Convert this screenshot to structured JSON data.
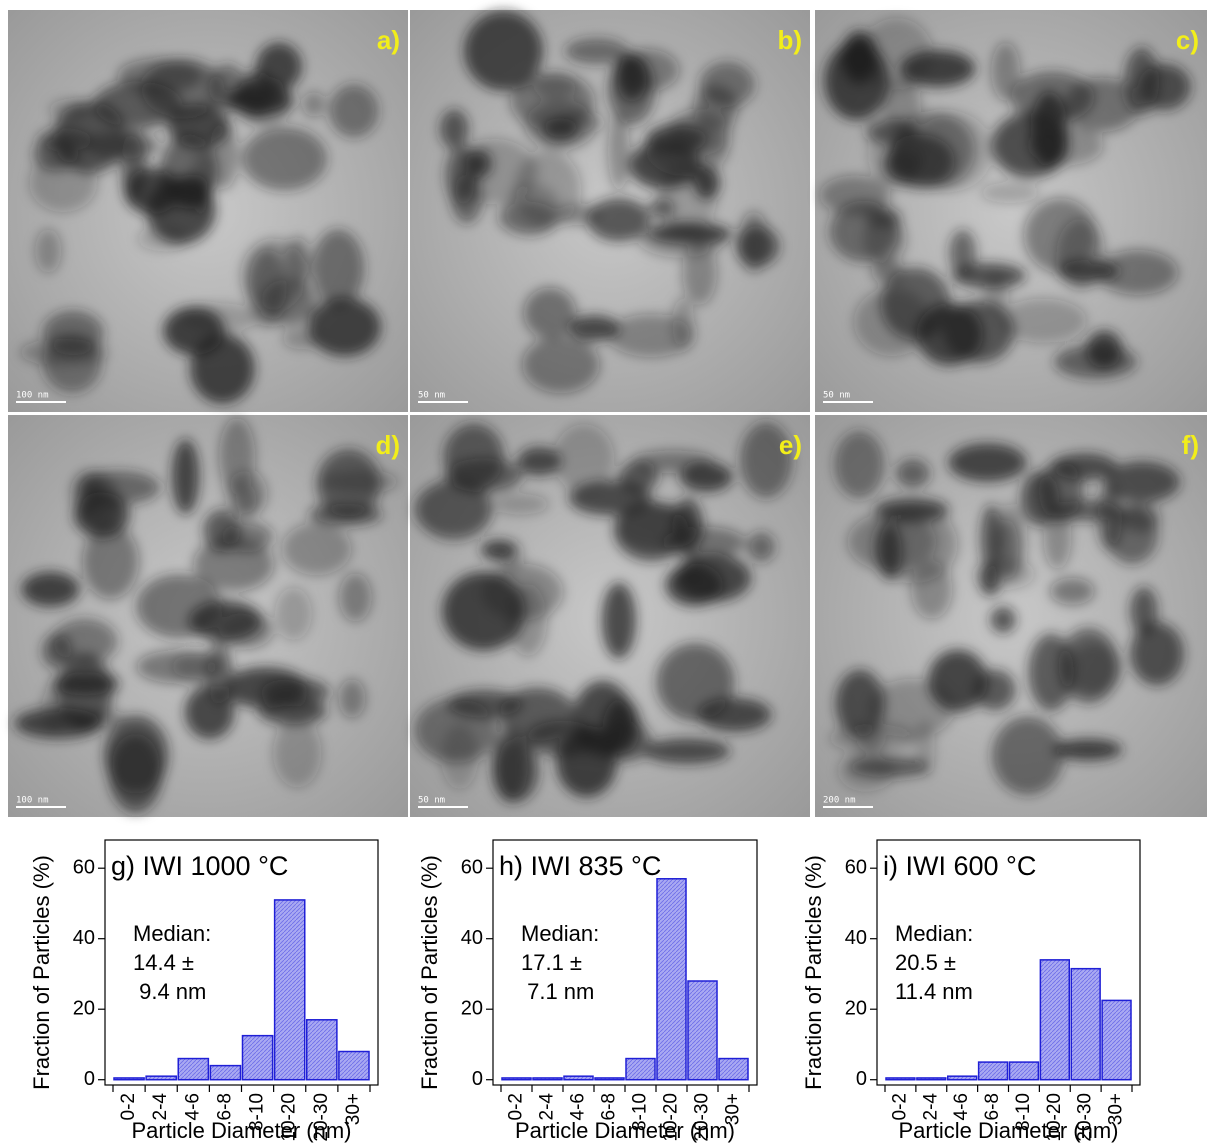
{
  "panels": [
    {
      "label": "a)",
      "scale": "100 nm"
    },
    {
      "label": "b)",
      "scale": "50 nm"
    },
    {
      "label": "c)",
      "scale": "50 nm"
    },
    {
      "label": "d)",
      "scale": "100 nm"
    },
    {
      "label": "e)",
      "scale": "50 nm"
    },
    {
      "label": "f)",
      "scale": "200 nm"
    }
  ],
  "chart_data": [
    {
      "type": "bar",
      "title": "g) IWI 1000 °C",
      "annotation": [
        "Median:",
        "14.4 ±",
        " 9.4 nm"
      ],
      "x_label": "Particle Diameter (nm)",
      "y_label": "Fraction of Particles (%)",
      "categories": [
        "0-2",
        "2-4",
        "4-6",
        "6-8",
        "8-10",
        "10-20",
        "20-30",
        "30+"
      ],
      "values": [
        0.5,
        1,
        6,
        4,
        12.5,
        51,
        17,
        8
      ],
      "color": "#a9a9f2",
      "edge_color": "#1f1fd6",
      "ylim": [
        -1.5,
        68
      ],
      "yticks": [
        0,
        20,
        40,
        60
      ]
    },
    {
      "type": "bar",
      "title": "h) IWI 835 °C",
      "annotation": [
        "Median:",
        "17.1 ±",
        " 7.1 nm"
      ],
      "x_label": "Particle Diameter (nm)",
      "y_label": "Fraction of Particles (%)",
      "categories": [
        "0-2",
        "2-4",
        "4-6",
        "6-8",
        "8-10",
        "10-20",
        "20-30",
        "30+"
      ],
      "values": [
        0.5,
        0.5,
        1,
        0.5,
        6,
        57,
        28,
        6
      ],
      "color": "#a9a9f2",
      "edge_color": "#1f1fd6",
      "ylim": [
        -1.5,
        68
      ],
      "yticks": [
        0,
        20,
        40,
        60
      ]
    },
    {
      "type": "bar",
      "title": "i) IWI 600 °C",
      "annotation": [
        "Median:",
        "20.5 ±",
        "11.4 nm"
      ],
      "x_label": "Particle Diameter (nm)",
      "y_label": "Fraction of Particles (%)",
      "categories": [
        "0-2",
        "2-4",
        "4-6",
        "6-8",
        "8-10",
        "10-20",
        "20-30",
        "30+"
      ],
      "values": [
        0.5,
        0.5,
        1,
        5,
        5,
        34,
        31.5,
        22.5
      ],
      "color": "#a9a9f2",
      "edge_color": "#1f1fd6",
      "ylim": [
        -1.5,
        68
      ],
      "yticks": [
        0,
        20,
        40,
        60
      ]
    }
  ]
}
